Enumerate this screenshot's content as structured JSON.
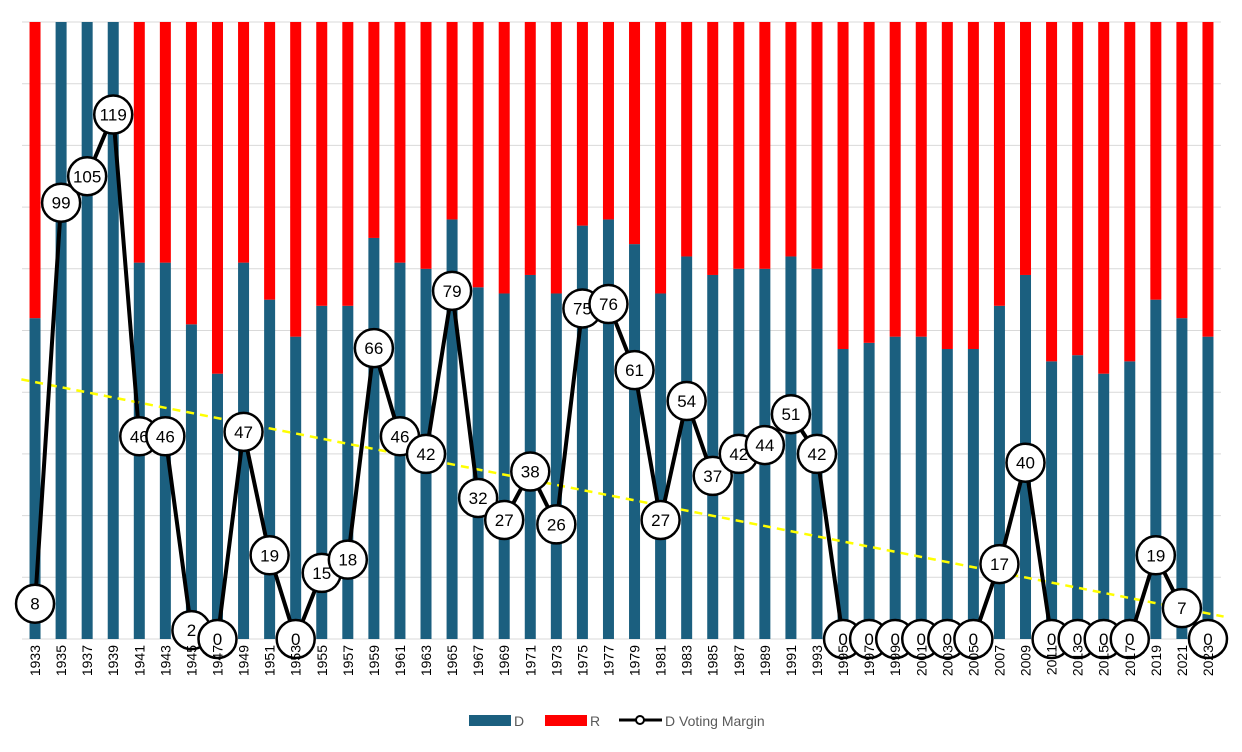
{
  "chart_data": {
    "type": "bar",
    "stacked": true,
    "title": "",
    "xlabel": "",
    "ylabel": "",
    "grid": true,
    "legend_position": "bottom",
    "categories": [
      "1933",
      "1935",
      "1937",
      "1939",
      "1941",
      "1943",
      "1945",
      "1947",
      "1949",
      "1951",
      "1953",
      "1955",
      "1957",
      "1959",
      "1961",
      "1963",
      "1965",
      "1967",
      "1969",
      "1971",
      "1973",
      "1975",
      "1977",
      "1979",
      "1981",
      "1983",
      "1985",
      "1987",
      "1989",
      "1991",
      "1993",
      "1995",
      "1997",
      "1999",
      "2001",
      "2003",
      "2005",
      "2007",
      "2009",
      "2011",
      "2013",
      "2015",
      "2017",
      "2019",
      "2021",
      "2023"
    ],
    "series": [
      {
        "name": "D",
        "color": "#1b5f7f",
        "values": [
          52,
          100,
          100,
          100,
          61,
          61,
          51,
          43,
          61,
          55,
          49,
          54,
          54,
          65,
          61,
          60,
          68,
          57,
          56,
          59,
          56,
          67,
          68,
          64,
          56,
          62,
          59,
          60,
          60,
          62,
          60,
          47,
          48,
          49,
          49,
          47,
          47,
          54,
          59,
          45,
          46,
          43,
          45,
          55,
          52,
          49
        ]
      },
      {
        "name": "R",
        "color": "#ff0000",
        "values": [
          48,
          0,
          0,
          0,
          39,
          39,
          49,
          57,
          39,
          45,
          51,
          46,
          46,
          35,
          39,
          40,
          32,
          43,
          44,
          41,
          44,
          33,
          32,
          36,
          44,
          38,
          41,
          40,
          40,
          38,
          40,
          53,
          52,
          51,
          51,
          53,
          53,
          46,
          41,
          55,
          54,
          57,
          55,
          45,
          48,
          51
        ]
      },
      {
        "name": "D Voting Margin",
        "type": "line",
        "color": "#000000",
        "values": [
          8,
          99,
          105,
          119,
          46,
          46,
          2,
          0,
          47,
          19,
          0,
          15,
          18,
          66,
          46,
          42,
          79,
          32,
          27,
          38,
          26,
          75,
          76,
          61,
          27,
          54,
          37,
          42,
          44,
          51,
          42,
          0,
          0,
          0,
          0,
          0,
          0,
          17,
          40,
          0,
          0,
          0,
          0,
          19,
          7,
          0
        ]
      }
    ],
    "trendline": {
      "color": "#ffff00",
      "style": "dashed"
    },
    "ylim": [
      0,
      100
    ],
    "margin_ylim": [
      0,
      140
    ]
  }
}
